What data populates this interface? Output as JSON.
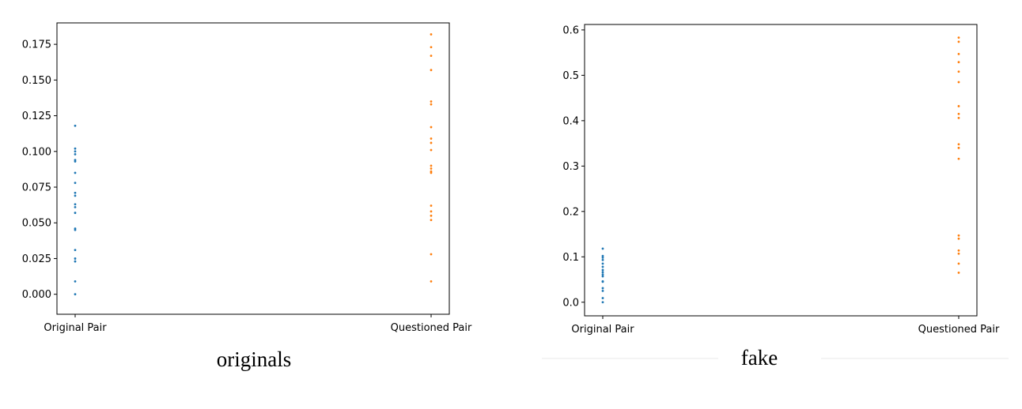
{
  "colors": {
    "series1": "#1f77b4",
    "series2": "#ff7f0e",
    "axis": "#000000",
    "divider": "#e8e8e8"
  },
  "chart_data": [
    {
      "type": "scatter",
      "caption": "originals",
      "categories": [
        "Original Pair",
        "Questioned Pair"
      ],
      "ylim": [
        -0.014,
        0.19
      ],
      "yticks": [
        0.0,
        0.025,
        0.05,
        0.075,
        0.1,
        0.125,
        0.15,
        0.175
      ],
      "ytick_labels": [
        "0.000",
        "0.025",
        "0.050",
        "0.075",
        "0.100",
        "0.125",
        "0.150",
        "0.175"
      ],
      "series": [
        {
          "category": "Original Pair",
          "color": "#1f77b4",
          "values": [
            0.118,
            0.102,
            0.1,
            0.098,
            0.094,
            0.093,
            0.085,
            0.078,
            0.071,
            0.069,
            0.063,
            0.061,
            0.057,
            0.046,
            0.045,
            0.031,
            0.025,
            0.023,
            0.009,
            0.0
          ]
        },
        {
          "category": "Questioned Pair",
          "color": "#ff7f0e",
          "values": [
            0.182,
            0.173,
            0.167,
            0.157,
            0.135,
            0.133,
            0.117,
            0.109,
            0.106,
            0.101,
            0.09,
            0.088,
            0.086,
            0.085,
            0.062,
            0.058,
            0.055,
            0.052,
            0.028,
            0.009
          ]
        }
      ]
    },
    {
      "type": "scatter",
      "caption": "fake",
      "categories": [
        "Original Pair",
        "Questioned Pair"
      ],
      "ylim": [
        -0.03,
        0.612
      ],
      "yticks": [
        0.0,
        0.1,
        0.2,
        0.3,
        0.4,
        0.5,
        0.6
      ],
      "ytick_labels": [
        "0.0",
        "0.1",
        "0.2",
        "0.3",
        "0.4",
        "0.5",
        "0.6"
      ],
      "series": [
        {
          "category": "Original Pair",
          "color": "#1f77b4",
          "values": [
            0.118,
            0.102,
            0.098,
            0.093,
            0.085,
            0.078,
            0.071,
            0.066,
            0.061,
            0.057,
            0.046,
            0.045,
            0.031,
            0.025,
            0.009,
            0.0
          ]
        },
        {
          "category": "Questioned Pair",
          "color": "#ff7f0e",
          "values": [
            0.583,
            0.574,
            0.547,
            0.529,
            0.508,
            0.485,
            0.432,
            0.415,
            0.406,
            0.348,
            0.34,
            0.316,
            0.147,
            0.14,
            0.114,
            0.107,
            0.085,
            0.065
          ]
        }
      ]
    }
  ]
}
